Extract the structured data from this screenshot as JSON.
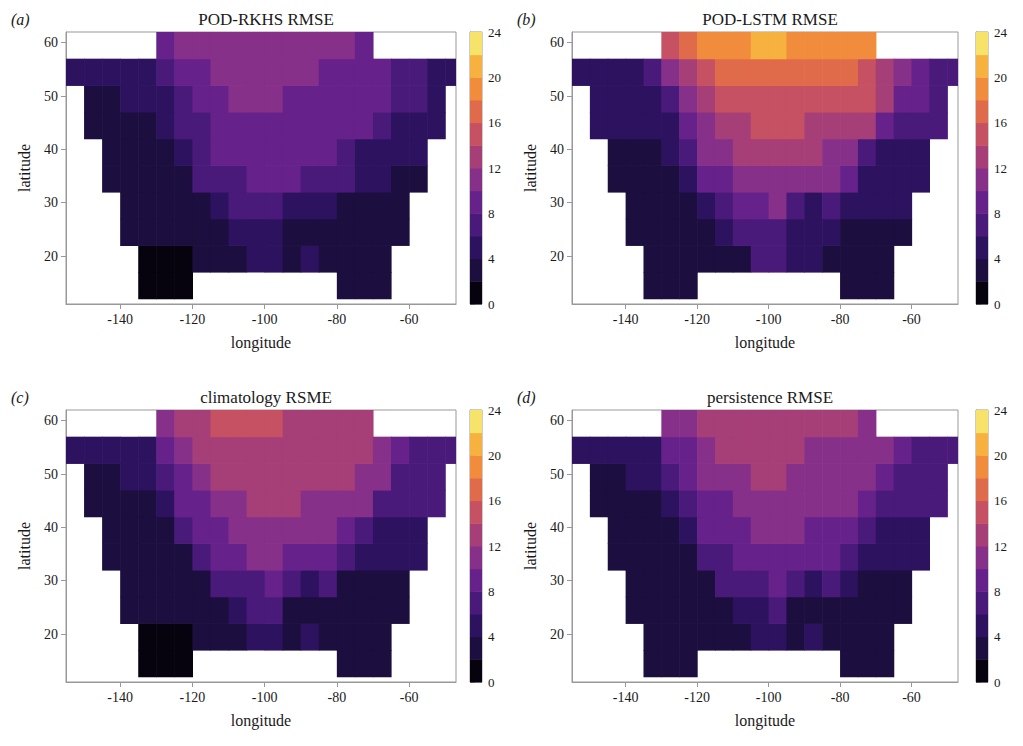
{
  "chart_data": [
    {
      "type": "heatmap",
      "panel_label": "(a)",
      "title": "POD-RKHS RMSE",
      "x_label": "longitude",
      "y_label": "latitude",
      "xlim": [
        -155,
        -47
      ],
      "xticks": [
        -140,
        -120,
        -100,
        -80,
        -60
      ],
      "ylim": [
        11,
        62
      ],
      "yticks": [
        20,
        30,
        40,
        50,
        60
      ],
      "x": [
        -152.5,
        -147.5,
        -142.5,
        -137.5,
        -132.5,
        -127.5,
        -122.5,
        -117.5,
        -112.5,
        -107.5,
        -102.5,
        -97.5,
        -92.5,
        -87.5,
        -82.5,
        -77.5,
        -72.5,
        -67.5,
        -62.5,
        -57.5,
        -52.5,
        -47.5
      ],
      "y": [
        14.5,
        19.5,
        24.5,
        29.5,
        34.5,
        39.5,
        44.5,
        49.5,
        54.5,
        59.5
      ],
      "cells": [
        [
          null,
          null,
          null,
          null,
          1,
          1,
          1,
          null,
          null,
          null,
          null,
          null,
          null,
          null,
          null,
          2,
          2,
          2,
          null,
          null,
          null,
          null
        ],
        [
          null,
          null,
          null,
          null,
          1,
          1,
          1,
          2,
          2,
          2,
          5,
          5,
          3,
          4,
          2,
          2,
          2,
          2,
          null,
          null,
          null,
          null
        ],
        [
          null,
          null,
          null,
          2,
          2,
          2,
          2,
          2,
          3,
          5,
          5,
          5,
          3,
          3,
          3,
          2,
          2,
          2,
          2,
          null,
          null,
          null
        ],
        [
          null,
          null,
          null,
          2,
          2,
          2,
          2,
          3,
          5,
          6,
          6,
          7,
          5,
          4,
          5,
          3,
          3,
          3,
          3,
          null,
          null,
          null
        ],
        [
          null,
          null,
          2,
          2,
          3,
          3,
          3,
          6,
          6,
          7,
          8,
          8,
          8,
          7,
          7,
          6,
          4,
          4,
          3,
          3,
          null,
          null
        ],
        [
          null,
          null,
          3,
          3,
          3,
          3,
          5,
          7,
          8,
          8,
          9,
          9,
          9,
          8,
          8,
          7,
          5,
          4,
          4,
          4,
          null,
          null
        ],
        [
          null,
          3,
          3,
          3,
          3,
          4,
          6,
          7,
          8,
          9,
          9,
          9,
          9,
          9,
          8,
          8,
          8,
          6,
          5,
          5,
          5,
          null
        ],
        [
          null,
          3,
          3,
          4,
          4,
          5,
          7,
          8,
          9,
          10,
          10,
          10,
          9,
          9,
          9,
          9,
          9,
          8,
          6,
          6,
          5,
          null
        ],
        [
          4,
          4,
          4,
          4,
          5,
          7,
          8,
          9,
          10,
          10,
          10,
          10,
          10,
          10,
          9,
          9,
          9,
          8,
          7,
          6,
          5,
          5
        ],
        [
          null,
          null,
          null,
          null,
          null,
          9,
          10,
          10,
          11,
          11,
          11,
          11,
          10,
          10,
          10,
          10,
          9,
          null,
          null,
          null,
          null,
          null
        ]
      ],
      "colorbar": {
        "range": [
          0,
          24
        ],
        "ticks": [
          0,
          4,
          8,
          12,
          16,
          20,
          24
        ],
        "levels": [
          0,
          2,
          4,
          6,
          8,
          10,
          12,
          14,
          16,
          18,
          20,
          22,
          24
        ]
      }
    },
    {
      "type": "heatmap",
      "panel_label": "(b)",
      "title": "POD-LSTM RMSE",
      "x_label": "longitude",
      "y_label": "latitude",
      "xlim": [
        -155,
        -47
      ],
      "xticks": [
        -140,
        -120,
        -100,
        -80,
        -60
      ],
      "ylim": [
        11,
        62
      ],
      "yticks": [
        20,
        30,
        40,
        50,
        60
      ],
      "x": [
        -152.5,
        -147.5,
        -142.5,
        -137.5,
        -132.5,
        -127.5,
        -122.5,
        -117.5,
        -112.5,
        -107.5,
        -102.5,
        -97.5,
        -92.5,
        -87.5,
        -82.5,
        -77.5,
        -72.5,
        -67.5,
        -62.5,
        -57.5,
        -52.5,
        -47.5
      ],
      "y": [
        14.5,
        19.5,
        24.5,
        29.5,
        34.5,
        39.5,
        44.5,
        49.5,
        54.5,
        59.5
      ],
      "cells": [
        [
          null,
          null,
          null,
          null,
          2,
          2,
          2,
          null,
          null,
          null,
          null,
          null,
          null,
          null,
          null,
          3,
          3,
          3,
          null,
          null,
          null,
          null
        ],
        [
          null,
          null,
          null,
          null,
          2,
          2,
          2,
          2,
          3,
          3,
          7,
          7,
          4,
          5,
          3,
          3,
          3,
          3,
          null,
          null,
          null,
          null
        ],
        [
          null,
          null,
          null,
          3,
          3,
          3,
          3,
          3,
          4,
          7,
          7,
          7,
          4,
          4,
          4,
          3,
          3,
          3,
          3,
          null,
          null,
          null
        ],
        [
          null,
          null,
          null,
          3,
          3,
          3,
          3,
          4,
          7,
          8,
          8,
          10,
          7,
          5,
          7,
          4,
          4,
          4,
          4,
          null,
          null,
          null
        ],
        [
          null,
          null,
          3,
          3,
          3,
          3,
          4,
          8,
          9,
          10,
          11,
          11,
          11,
          10,
          10,
          9,
          5,
          5,
          4,
          4,
          null,
          null
        ],
        [
          null,
          null,
          3,
          3,
          3,
          4,
          7,
          10,
          11,
          12,
          13,
          13,
          13,
          12,
          11,
          10,
          7,
          5,
          5,
          5,
          null,
          null
        ],
        [
          null,
          4,
          4,
          4,
          4,
          5,
          9,
          11,
          12,
          13,
          14,
          14,
          14,
          13,
          13,
          13,
          12,
          8,
          7,
          7,
          6,
          null
        ],
        [
          null,
          4,
          4,
          5,
          5,
          7,
          11,
          12,
          14,
          15,
          15,
          15,
          15,
          15,
          14,
          14,
          14,
          12,
          9,
          8,
          7,
          null
        ],
        [
          5,
          5,
          5,
          5,
          6,
          10,
          13,
          15,
          17,
          17,
          17,
          17,
          17,
          16,
          16,
          16,
          15,
          13,
          11,
          9,
          7,
          7
        ],
        [
          null,
          null,
          null,
          null,
          null,
          15,
          17,
          18,
          19,
          19,
          20,
          20,
          19,
          18,
          18,
          19,
          18,
          null,
          null,
          null,
          null,
          null
        ]
      ],
      "colorbar": {
        "range": [
          0,
          24
        ],
        "ticks": [
          0,
          4,
          8,
          12,
          16,
          20,
          24
        ],
        "levels": [
          0,
          2,
          4,
          6,
          8,
          10,
          12,
          14,
          16,
          18,
          20,
          22,
          24
        ]
      }
    },
    {
      "type": "heatmap",
      "panel_label": "(c)",
      "title": "climatology RSME",
      "x_label": "longitude",
      "y_label": "latitude",
      "xlim": [
        -155,
        -47
      ],
      "xticks": [
        -140,
        -120,
        -100,
        -80,
        -60
      ],
      "ylim": [
        11,
        62
      ],
      "yticks": [
        20,
        30,
        40,
        50,
        60
      ],
      "x": [
        -152.5,
        -147.5,
        -142.5,
        -137.5,
        -132.5,
        -127.5,
        -122.5,
        -117.5,
        -112.5,
        -107.5,
        -102.5,
        -97.5,
        -92.5,
        -87.5,
        -82.5,
        -77.5,
        -72.5,
        -67.5,
        -62.5,
        -57.5,
        -52.5,
        -47.5
      ],
      "y": [
        14.5,
        19.5,
        24.5,
        29.5,
        34.5,
        39.5,
        44.5,
        49.5,
        54.5,
        59.5
      ],
      "cells": [
        [
          null,
          null,
          null,
          null,
          1,
          1,
          1,
          null,
          null,
          null,
          null,
          null,
          null,
          null,
          null,
          2,
          2,
          2,
          null,
          null,
          null,
          null
        ],
        [
          null,
          null,
          null,
          null,
          1,
          1,
          1,
          2,
          2,
          2,
          5,
          5,
          3,
          4,
          2,
          2,
          2,
          2,
          null,
          null,
          null,
          null
        ],
        [
          null,
          null,
          null,
          2,
          2,
          2,
          2,
          2,
          3,
          5,
          6,
          6,
          3,
          3,
          3,
          2,
          2,
          2,
          2,
          null,
          null,
          null
        ],
        [
          null,
          null,
          null,
          2,
          2,
          2,
          2,
          3,
          6,
          7,
          7,
          8,
          6,
          4,
          6,
          3,
          3,
          3,
          3,
          null,
          null,
          null
        ],
        [
          null,
          null,
          2,
          2,
          2,
          3,
          3,
          7,
          8,
          9,
          10,
          10,
          9,
          9,
          8,
          7,
          5,
          4,
          4,
          4,
          null,
          null
        ],
        [
          null,
          null,
          3,
          3,
          3,
          3,
          6,
          9,
          9,
          10,
          11,
          11,
          11,
          10,
          10,
          9,
          6,
          5,
          5,
          5,
          null,
          null
        ],
        [
          null,
          3,
          3,
          3,
          3,
          4,
          8,
          9,
          10,
          11,
          12,
          12,
          12,
          11,
          11,
          11,
          10,
          7,
          6,
          6,
          6,
          null
        ],
        [
          null,
          3,
          3,
          4,
          4,
          6,
          9,
          11,
          12,
          13,
          13,
          13,
          12,
          12,
          12,
          12,
          11,
          10,
          7,
          7,
          6,
          null
        ],
        [
          4,
          4,
          4,
          4,
          5,
          8,
          10,
          12,
          13,
          13,
          13,
          13,
          13,
          12,
          12,
          12,
          12,
          11,
          9,
          7,
          6,
          6
        ],
        [
          null,
          null,
          null,
          null,
          null,
          11,
          12,
          13,
          14,
          14,
          14,
          14,
          13,
          13,
          13,
          13,
          12,
          null,
          null,
          null,
          null,
          null
        ]
      ],
      "colorbar": {
        "range": [
          0,
          24
        ],
        "ticks": [
          0,
          4,
          8,
          12,
          16,
          20,
          24
        ],
        "levels": [
          0,
          2,
          4,
          6,
          8,
          10,
          12,
          14,
          16,
          18,
          20,
          22,
          24
        ]
      }
    },
    {
      "type": "heatmap",
      "panel_label": "(d)",
      "title": "persistence RMSE",
      "x_label": "longitude",
      "y_label": "latitude",
      "xlim": [
        -155,
        -47
      ],
      "xticks": [
        -140,
        -120,
        -100,
        -80,
        -60
      ],
      "ylim": [
        11,
        62
      ],
      "yticks": [
        20,
        30,
        40,
        50,
        60
      ],
      "x": [
        -152.5,
        -147.5,
        -142.5,
        -137.5,
        -132.5,
        -127.5,
        -122.5,
        -117.5,
        -112.5,
        -107.5,
        -102.5,
        -97.5,
        -92.5,
        -87.5,
        -82.5,
        -77.5,
        -72.5,
        -67.5,
        -62.5,
        -57.5,
        -52.5,
        -47.5
      ],
      "y": [
        14.5,
        19.5,
        24.5,
        29.5,
        34.5,
        39.5,
        44.5,
        49.5,
        54.5,
        59.5
      ],
      "cells": [
        [
          null,
          null,
          null,
          null,
          2,
          2,
          2,
          null,
          null,
          null,
          null,
          null,
          null,
          null,
          null,
          2,
          2,
          2,
          null,
          null,
          null,
          null
        ],
        [
          null,
          null,
          null,
          null,
          2,
          2,
          2,
          2,
          2,
          3,
          5,
          5,
          3,
          4,
          2,
          2,
          2,
          2,
          null,
          null,
          null,
          null
        ],
        [
          null,
          null,
          null,
          2,
          2,
          2,
          2,
          3,
          3,
          5,
          5,
          6,
          3,
          3,
          3,
          3,
          3,
          3,
          3,
          null,
          null,
          null
        ],
        [
          null,
          null,
          null,
          2,
          2,
          2,
          3,
          3,
          6,
          6,
          7,
          8,
          6,
          4,
          6,
          4,
          3,
          3,
          3,
          null,
          null,
          null
        ],
        [
          null,
          null,
          2,
          2,
          3,
          3,
          3,
          7,
          7,
          8,
          9,
          9,
          9,
          8,
          8,
          7,
          5,
          5,
          4,
          4,
          null,
          null
        ],
        [
          null,
          null,
          3,
          3,
          3,
          3,
          5,
          8,
          9,
          9,
          10,
          10,
          10,
          9,
          9,
          8,
          6,
          5,
          5,
          5,
          null,
          null
        ],
        [
          null,
          3,
          3,
          3,
          3,
          4,
          7,
          8,
          9,
          10,
          10,
          11,
          11,
          10,
          10,
          10,
          9,
          7,
          6,
          6,
          6,
          null
        ],
        [
          null,
          3,
          3,
          4,
          4,
          6,
          8,
          10,
          11,
          11,
          12,
          12,
          11,
          11,
          11,
          11,
          10,
          9,
          7,
          7,
          6,
          null
        ],
        [
          4,
          4,
          4,
          4,
          5,
          8,
          9,
          11,
          12,
          12,
          12,
          12,
          12,
          11,
          11,
          11,
          11,
          10,
          8,
          7,
          6,
          6
        ],
        [
          null,
          null,
          null,
          null,
          null,
          10,
          11,
          12,
          13,
          13,
          13,
          13,
          12,
          12,
          12,
          12,
          11,
          null,
          null,
          null,
          null,
          null
        ]
      ],
      "colorbar": {
        "range": [
          0,
          24
        ],
        "ticks": [
          0,
          4,
          8,
          12,
          16,
          20,
          24
        ],
        "levels": [
          0,
          2,
          4,
          6,
          8,
          10,
          12,
          14,
          16,
          18,
          20,
          22,
          24
        ]
      }
    }
  ]
}
